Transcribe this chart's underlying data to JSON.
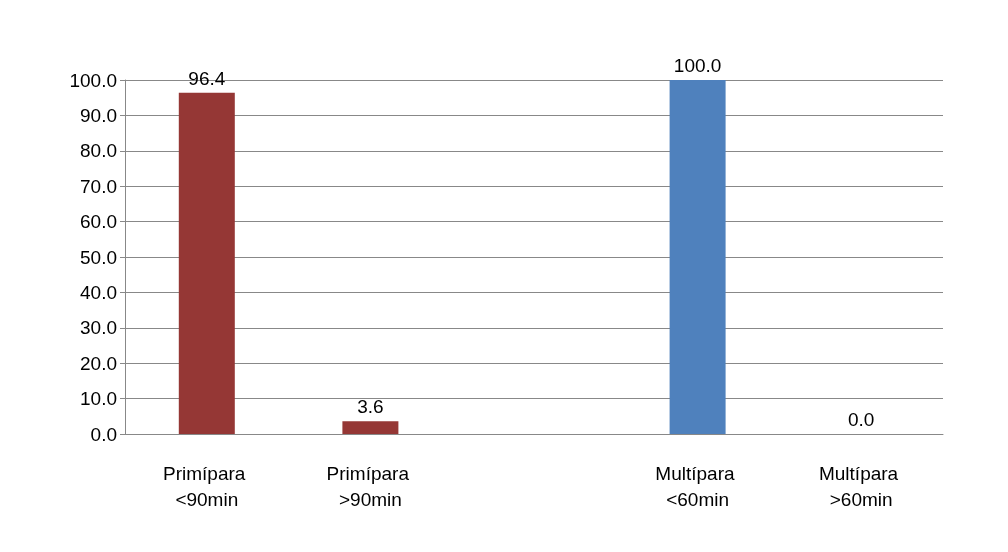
{
  "chart_data": {
    "type": "bar",
    "categories": [
      "Primípara <90min",
      "Primípara >90min",
      null,
      "Multípara <60min",
      "Multípara >60min"
    ],
    "values": [
      96.4,
      3.6,
      null,
      100.0,
      0.0
    ],
    "colors": [
      "#953735",
      "#953735",
      null,
      "#4f81bd",
      "#4f81bd"
    ],
    "value_labels": [
      "96.4",
      "3.6",
      null,
      "100.0",
      "0.0"
    ],
    "ylim": [
      0,
      100
    ],
    "yticks": [
      {
        "value": 0,
        "label": "0.0"
      },
      {
        "value": 10,
        "label": "10.0"
      },
      {
        "value": 20,
        "label": "20.0"
      },
      {
        "value": 30,
        "label": "30.0"
      },
      {
        "value": 40,
        "label": "40.0"
      },
      {
        "value": 50,
        "label": "50.0"
      },
      {
        "value": 60,
        "label": "60.0"
      },
      {
        "value": 70,
        "label": "70.0"
      },
      {
        "value": 80,
        "label": "80.0"
      },
      {
        "value": 90,
        "label": "90.0"
      },
      {
        "value": 100,
        "label": "100.0"
      }
    ],
    "grid": "y"
  }
}
